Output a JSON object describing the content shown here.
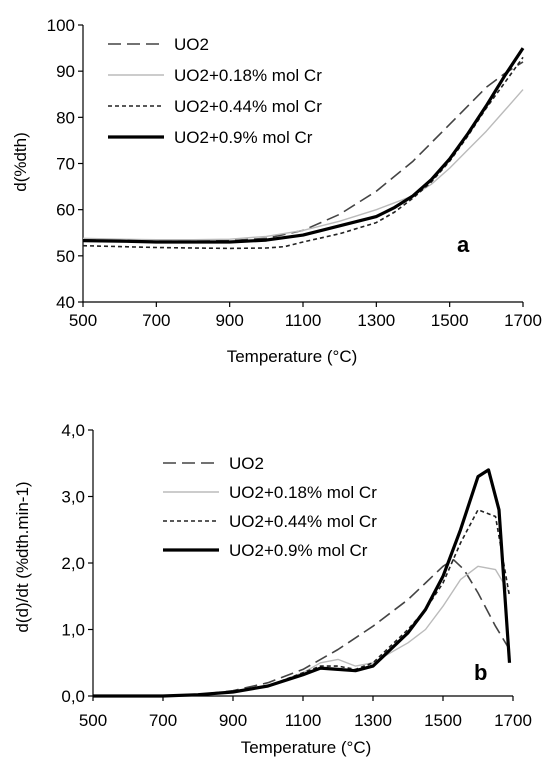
{
  "chart_data": [
    {
      "type": "line",
      "panel_label": "a",
      "xlabel": "Temperature (°C)",
      "ylabel": "d(%dth)",
      "xlim": [
        500,
        1700
      ],
      "ylim": [
        40,
        100
      ],
      "xticks": [
        500,
        700,
        900,
        1100,
        1300,
        1500,
        1700
      ],
      "yticks": [
        40,
        50,
        60,
        70,
        80,
        90,
        100
      ],
      "ytick_labels": [
        "40",
        "50",
        "60",
        "70",
        "80",
        "90",
        "100"
      ],
      "legend": "top-left",
      "grid": false,
      "series": [
        {
          "name": "UO2",
          "style": "dashed-long",
          "color": "#444444",
          "x": [
            500,
            600,
            700,
            800,
            900,
            1000,
            1100,
            1200,
            1300,
            1400,
            1500,
            1600,
            1650,
            1700
          ],
          "y": [
            53.5,
            53.3,
            53.2,
            53.2,
            53.3,
            53.8,
            55.5,
            59.0,
            64.0,
            70.5,
            78.5,
            86.5,
            89.5,
            92.0
          ]
        },
        {
          "name": "UO2+0.18% mol Cr",
          "style": "solid-thin",
          "color": "#bbbbbb",
          "x": [
            500,
            600,
            700,
            800,
            900,
            1000,
            1100,
            1200,
            1300,
            1400,
            1450,
            1500,
            1550,
            1600,
            1650,
            1700
          ],
          "y": [
            53.8,
            53.6,
            53.5,
            53.5,
            53.6,
            54.2,
            55.5,
            57.5,
            60.0,
            63.0,
            65.5,
            69.0,
            73.0,
            77.0,
            81.5,
            86.0
          ]
        },
        {
          "name": "UO2+0.44% mol Cr",
          "style": "dotted",
          "color": "#222222",
          "x": [
            500,
            600,
            700,
            800,
            900,
            1000,
            1050,
            1100,
            1200,
            1300,
            1350,
            1400,
            1450,
            1500,
            1550,
            1600,
            1650,
            1700
          ],
          "y": [
            52.2,
            52.0,
            51.8,
            51.7,
            51.6,
            51.7,
            52.0,
            53.0,
            54.8,
            57.2,
            59.5,
            62.5,
            66.0,
            70.5,
            76.0,
            82.0,
            87.5,
            93.0
          ]
        },
        {
          "name": "UO2+0.9% mol Cr",
          "style": "solid-thick",
          "color": "#000000",
          "x": [
            500,
            600,
            700,
            800,
            900,
            1000,
            1100,
            1200,
            1300,
            1350,
            1400,
            1450,
            1500,
            1550,
            1600,
            1650,
            1700
          ],
          "y": [
            53.3,
            53.2,
            53.0,
            53.0,
            53.0,
            53.4,
            54.5,
            56.5,
            58.5,
            60.5,
            63.0,
            66.5,
            71.0,
            76.5,
            82.5,
            89.0,
            95.0
          ]
        }
      ]
    },
    {
      "type": "line",
      "panel_label": "b",
      "xlabel": "Temperature (°C)",
      "ylabel": "d(d)/dt (%dth.min-1)",
      "xlim": [
        500,
        1700
      ],
      "ylim": [
        0,
        4
      ],
      "xticks": [
        500,
        700,
        900,
        1100,
        1300,
        1500,
        1700
      ],
      "yticks": [
        0,
        1,
        2,
        3,
        4
      ],
      "ytick_labels": [
        "0,0",
        "1,0",
        "2,0",
        "3,0",
        "4,0"
      ],
      "legend": "top-center",
      "grid": false,
      "series": [
        {
          "name": "UO2",
          "style": "dashed-long",
          "color": "#444444",
          "x": [
            500,
            700,
            800,
            900,
            1000,
            1100,
            1200,
            1300,
            1400,
            1450,
            1500,
            1530,
            1560,
            1600,
            1650,
            1690
          ],
          "y": [
            0.0,
            0.0,
            0.02,
            0.08,
            0.2,
            0.4,
            0.7,
            1.05,
            1.45,
            1.7,
            1.95,
            2.05,
            1.9,
            1.55,
            1.05,
            0.7
          ]
        },
        {
          "name": "UO2+0.18% mol Cr",
          "style": "solid-thin",
          "color": "#bbbbbb",
          "x": [
            500,
            700,
            800,
            900,
            1000,
            1100,
            1150,
            1200,
            1250,
            1300,
            1400,
            1450,
            1500,
            1550,
            1600,
            1650,
            1690
          ],
          "y": [
            0.0,
            0.0,
            0.02,
            0.07,
            0.15,
            0.35,
            0.5,
            0.55,
            0.45,
            0.5,
            0.8,
            1.0,
            1.35,
            1.75,
            1.95,
            1.9,
            1.55
          ]
        },
        {
          "name": "UO2+0.44% mol Cr",
          "style": "dotted",
          "color": "#222222",
          "x": [
            500,
            700,
            800,
            900,
            1000,
            1100,
            1150,
            1200,
            1250,
            1300,
            1350,
            1400,
            1450,
            1500,
            1550,
            1600,
            1650,
            1690
          ],
          "y": [
            0.0,
            0.0,
            0.02,
            0.07,
            0.15,
            0.35,
            0.45,
            0.45,
            0.4,
            0.5,
            0.75,
            1.0,
            1.3,
            1.7,
            2.3,
            2.8,
            2.7,
            1.5
          ]
        },
        {
          "name": "UO2+0.9% mol Cr",
          "style": "solid-thick",
          "color": "#000000",
          "x": [
            500,
            700,
            800,
            900,
            1000,
            1100,
            1150,
            1200,
            1250,
            1300,
            1350,
            1400,
            1450,
            1500,
            1550,
            1600,
            1630,
            1660,
            1690
          ],
          "y": [
            0.0,
            0.0,
            0.02,
            0.06,
            0.15,
            0.32,
            0.42,
            0.4,
            0.38,
            0.45,
            0.7,
            0.95,
            1.3,
            1.8,
            2.5,
            3.3,
            3.4,
            2.8,
            0.5
          ]
        }
      ]
    }
  ]
}
